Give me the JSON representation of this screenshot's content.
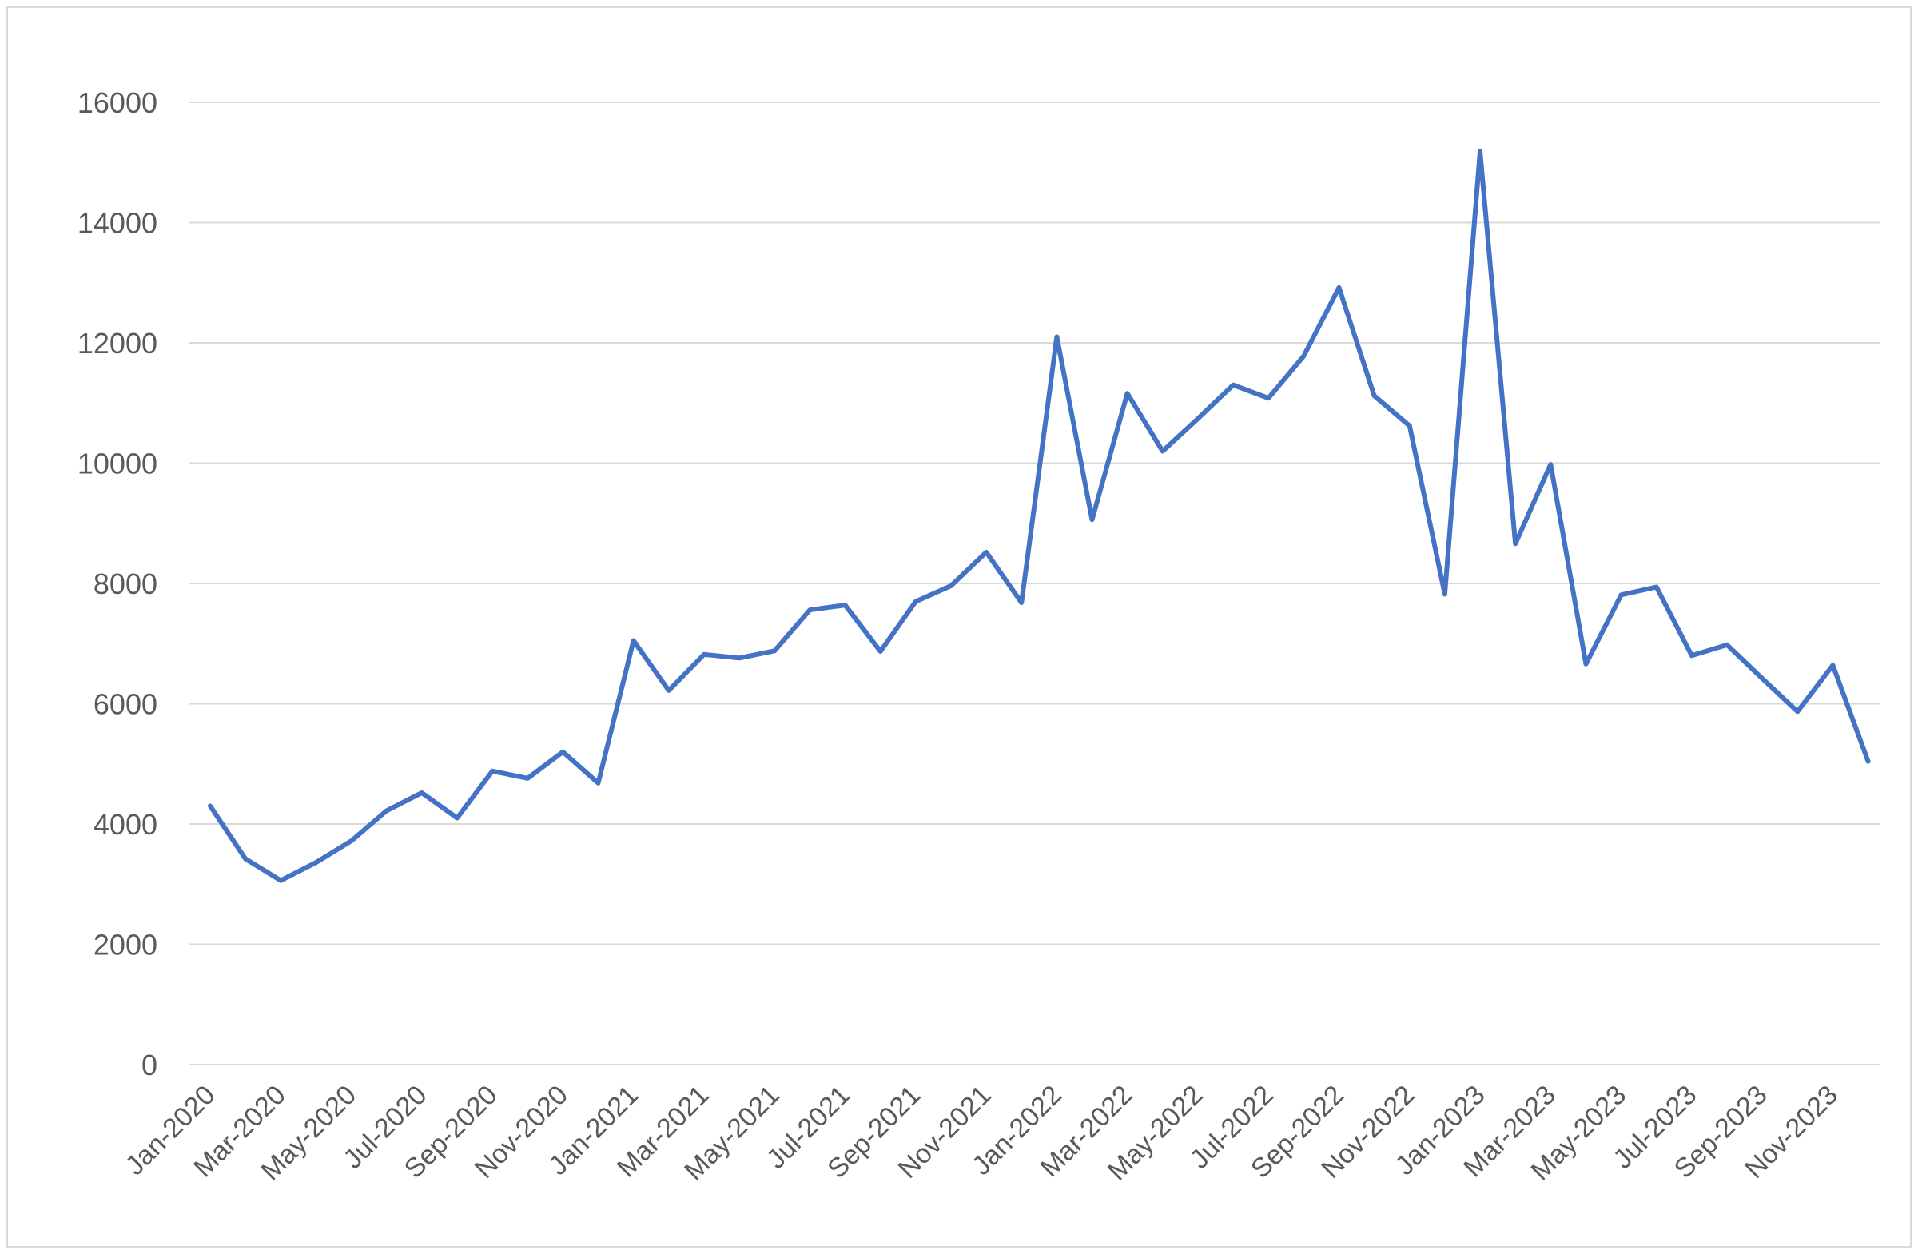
{
  "chart_data": {
    "type": "line",
    "title": "",
    "xlabel": "",
    "ylabel": "",
    "ylim": [
      0,
      16000
    ],
    "y_ticks": [
      "0",
      "2000",
      "4000",
      "6000",
      "8000",
      "10000",
      "12000",
      "14000",
      "16000"
    ],
    "grid": "horizontal",
    "legend": "none",
    "line_color": "#4472c4",
    "x": [
      "Jan-2020",
      "Feb-2020",
      "Mar-2020",
      "Apr-2020",
      "May-2020",
      "Jun-2020",
      "Jul-2020",
      "Aug-2020",
      "Sep-2020",
      "Oct-2020",
      "Nov-2020",
      "Dec-2020",
      "Jan-2021",
      "Feb-2021",
      "Mar-2021",
      "Apr-2021",
      "May-2021",
      "Jun-2021",
      "Jul-2021",
      "Aug-2021",
      "Sep-2021",
      "Oct-2021",
      "Nov-2021",
      "Dec-2021",
      "Jan-2022",
      "Feb-2022",
      "Mar-2022",
      "Apr-2022",
      "May-2022",
      "Jun-2022",
      "Jul-2022",
      "Aug-2022",
      "Sep-2022",
      "Oct-2022",
      "Nov-2022",
      "Dec-2022",
      "Jan-2023",
      "Feb-2023",
      "Mar-2023",
      "Apr-2023",
      "May-2023",
      "Jun-2023",
      "Jul-2023",
      "Aug-2023",
      "Sep-2023",
      "Oct-2023",
      "Nov-2023",
      "Dec-2023"
    ],
    "x_tick_labels": [
      "Jan-2020",
      "Mar-2020",
      "May-2020",
      "Jul-2020",
      "Sep-2020",
      "Nov-2020",
      "Jan-2021",
      "Mar-2021",
      "May-2021",
      "Jul-2021",
      "Sep-2021",
      "Nov-2021",
      "Jan-2022",
      "Mar-2022",
      "May-2022",
      "Jul-2022",
      "Sep-2022",
      "Nov-2022",
      "Jan-2023",
      "Mar-2023",
      "May-2023",
      "Jul-2023",
      "Sep-2023",
      "Nov-2023"
    ],
    "series": [
      {
        "values": [
          4300,
          3420,
          3060,
          3360,
          3720,
          4220,
          4520,
          4100,
          4880,
          4760,
          5200,
          4680,
          7050,
          6220,
          6820,
          6760,
          6880,
          7560,
          7640,
          6870,
          7700,
          7960,
          8520,
          7680,
          12100,
          9060,
          11160,
          10200,
          10740,
          11300,
          11080,
          11780,
          12920,
          11120,
          10620,
          7820,
          15180,
          8660,
          9980,
          6660,
          7810,
          7940,
          6800,
          6980,
          6420,
          5870,
          6640,
          5040
        ]
      }
    ]
  }
}
